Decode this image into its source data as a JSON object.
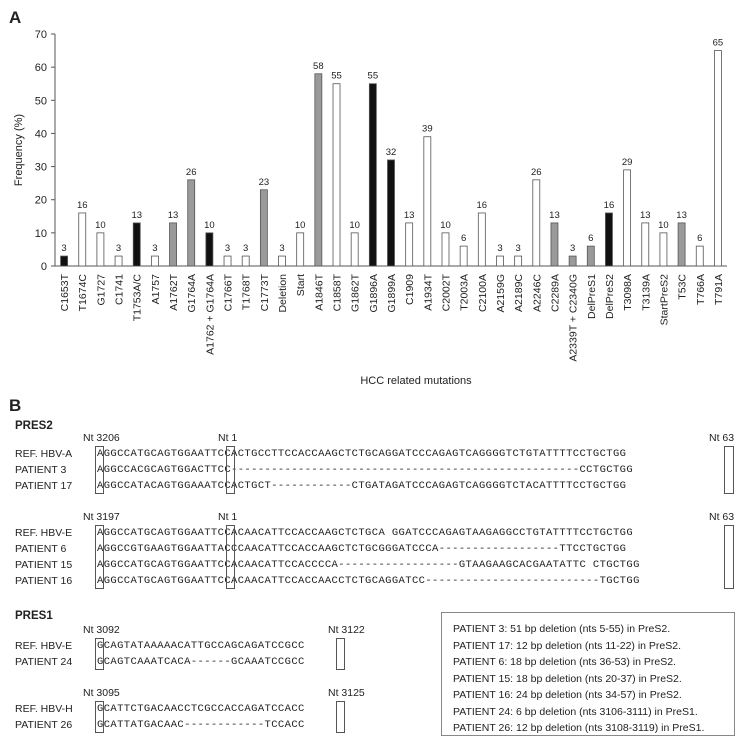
{
  "panels": {
    "a": "A",
    "b": "B"
  },
  "chart_data": {
    "type": "bar",
    "ylabel": "Frequency (%)",
    "xlabel": "HCC related mutations",
    "ylim": [
      0,
      70
    ],
    "yticks": [
      0,
      10,
      20,
      30,
      40,
      50,
      60,
      70
    ],
    "grid": false,
    "colors": {
      "black": "#111111",
      "gray": "#9a9a9a",
      "white": "#ffffff",
      "edge": "#555555"
    },
    "categories": [
      "C1653T",
      "T1674C",
      "G1727",
      "C1741",
      "T1753A/C",
      "A1757",
      "A1762T",
      "G1764A",
      "A1762 + G1764A",
      "C1766T",
      "T1768T",
      "C1773T",
      "Deletion",
      "Start",
      "A1846T",
      "C1858T",
      "G1862T",
      "G1896A",
      "G1899A",
      "C1909",
      "A1934T",
      "C2002T",
      "T2003A",
      "C2100A",
      "A2159G",
      "A2189C",
      "A2246C",
      "C2289A",
      "A2339T + C2340G",
      "DelPreS1",
      "DelPreS2",
      "T3098A",
      "T3139A",
      "StartPreS2",
      "T53C",
      "T766A",
      "T791A"
    ],
    "values": [
      3,
      16,
      10,
      3,
      13,
      3,
      13,
      26,
      10,
      3,
      3,
      23,
      3,
      10,
      58,
      55,
      10,
      55,
      32,
      13,
      39,
      10,
      6,
      16,
      3,
      3,
      26,
      13,
      3,
      6,
      16,
      29,
      13,
      10,
      13,
      6,
      65
    ],
    "fills": [
      "black",
      "white",
      "white",
      "white",
      "black",
      "white",
      "gray",
      "gray",
      "black",
      "white",
      "white",
      "gray",
      "white",
      "white",
      "gray",
      "white",
      "white",
      "black",
      "black",
      "white",
      "white",
      "white",
      "white",
      "white",
      "white",
      "white",
      "white",
      "gray",
      "gray",
      "gray",
      "black",
      "white",
      "white",
      "white",
      "gray",
      "white",
      "white"
    ]
  },
  "pres2": {
    "title": "PRES2",
    "groups": [
      {
        "nt_left": "Nt 3206",
        "nt_mid": "Nt 1",
        "nt_right": "Nt 63",
        "rows": [
          {
            "label": "REF. HBV-A",
            "seq": "AGGCCATGCAGTGGAATTCCACTGCCTTCCACCAAGCTCTGCAGGATCCCAGAGTCAGGGGTCTGTATTTTCCTGCTGG"
          },
          {
            "label": "PATIENT 3",
            "seq": "AGGCCACGCAGTGGACTTCC----------------------------------------------------CCTGCTGG"
          },
          {
            "label": "PATIENT 17",
            "seq": "AGGCCATACAGTGGAAATCCACTGCT------------CTGATAGATCCCAGAGTCAGGGGTCTACATTTTCCTGCTGG"
          }
        ]
      },
      {
        "nt_left": "Nt 3197",
        "nt_mid": "Nt 1",
        "nt_right": "Nt 63",
        "rows": [
          {
            "label": "REF. HBV-E",
            "seq": "AGGCCATGCAGTGGAATTCCACAACATTCCACCAAGCTCTGCA GGATCCCAGAGTAAGAGGCCTGTATTTTCCTGCTGG"
          },
          {
            "label": "PATIENT 6",
            "seq": "AGGCCGTGAAGTGGAATTACCCAACATTCCACCAAGCTCTGCGGGATCCCA------------------TTCCTGCTGG"
          },
          {
            "label": "PATIENT 15",
            "seq": "AGGCCATGCAGTGGAATTCCACAACATTCCACCCCA------------------GTAAGAAGCACGAATATTC CTGCTGG"
          },
          {
            "label": "PATIENT 16",
            "seq": "AGGCCATGCAGTGGAATTCCACAACATTCCACCAACCTCTGCAGGATCC--------------------------TGCTGG"
          }
        ]
      }
    ]
  },
  "pres1": {
    "title": "PRES1",
    "groups": [
      {
        "nt_left": "Nt 3092",
        "nt_right": "Nt 3122",
        "rows": [
          {
            "label": "REF. HBV-E",
            "seq": "GCAGTATAAAAACATTGCCAGCAGATCCGCC"
          },
          {
            "label": "PATIENT 24",
            "seq": "GCAGTCAAATCACA------GCAAATCCGCC"
          }
        ]
      },
      {
        "nt_left": "Nt 3095",
        "nt_right": "Nt 3125",
        "rows": [
          {
            "label": "REF. HBV-H",
            "seq": "GCATTCTGACAACCTCGCCACCAGATCCACC"
          },
          {
            "label": "PATIENT 26",
            "seq": "GCATTATGACAAC------------TCCACC"
          }
        ]
      }
    ]
  },
  "legend": [
    "PATIENT 3: 51 bp deletion (nts 5-55) in PreS2.",
    "PATIENT 17: 12 bp deletion (nts 11-22) in PreS2.",
    "PATIENT 6: 18 bp deletion (nts 36-53) in PreS2.",
    "PATIENT 15: 18 bp deletion (nts 20-37) in PreS2.",
    "PATIENT 16: 24 bp deletion (nts 34-57) in PreS2.",
    "PATIENT 24: 6 bp deletion (nts 3106-3111) in PreS1.",
    "PATIENT 26: 12 bp deletion (nts 3108-3119) in PreS1."
  ]
}
